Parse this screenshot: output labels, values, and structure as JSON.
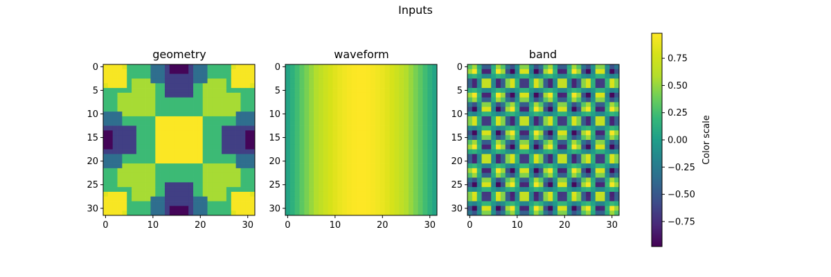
{
  "title": "Inputs",
  "chart_data": {
    "type": "heatmap",
    "colormap": "viridis",
    "vmin": -0.98,
    "vmax": 0.98,
    "grid_size": 32,
    "panels": [
      {
        "title": "geometry",
        "xticks": [
          "0",
          "10",
          "20",
          "30"
        ],
        "yticks": [
          "0",
          "5",
          "10",
          "15",
          "20",
          "25",
          "30"
        ]
      },
      {
        "title": "waveform",
        "xticks": [
          "0",
          "10",
          "20",
          "30"
        ],
        "yticks": [
          "0",
          "5",
          "10",
          "15",
          "20",
          "25",
          "30"
        ]
      },
      {
        "title": "band",
        "xticks": [
          "0",
          "10",
          "20",
          "30"
        ],
        "yticks": [
          "0",
          "5",
          "10",
          "15",
          "20",
          "25",
          "30"
        ]
      }
    ],
    "colorbar": {
      "label": "Color scale",
      "ticks": [
        "0.75",
        "0.50",
        "0.25",
        "0.00",
        "−0.25",
        "−0.50",
        "−0.75"
      ]
    }
  }
}
